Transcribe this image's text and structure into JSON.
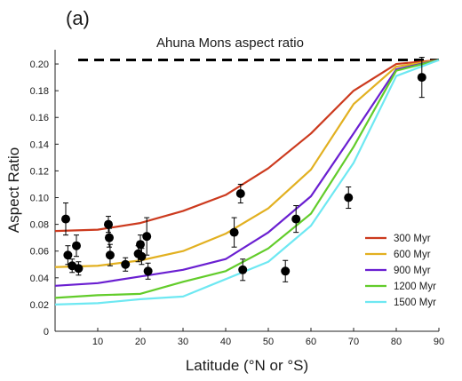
{
  "chart_data": {
    "type": "line",
    "panel_label": "(a)",
    "xlabel": "Latitude (°N or °S)",
    "ylabel": "Aspect Ratio",
    "xlim": [
      0,
      90
    ],
    "ylim": [
      0,
      0.21
    ],
    "xticks": [
      10,
      20,
      30,
      40,
      50,
      60,
      70,
      80,
      90
    ],
    "yticks": [
      0,
      0.02,
      0.04,
      0.06,
      0.08,
      0.1,
      0.12,
      0.14,
      0.16,
      0.18,
      0.2
    ],
    "ytick_labels": [
      "0",
      "0.02",
      "0.04",
      "0.06",
      "0.08",
      "0.10",
      "0.12",
      "0.14",
      "0.16",
      "0.18",
      "0.20"
    ],
    "grid": false,
    "reference_line": {
      "label": "Ahuna Mons aspect ratio",
      "y": 0.203,
      "style": "dashed",
      "color": "#000000"
    },
    "x": [
      0,
      10,
      20,
      30,
      40,
      50,
      60,
      70,
      80,
      90
    ],
    "series": [
      {
        "name": "300 Myr",
        "color": "#cc3a1e",
        "values": [
          0.075,
          0.076,
          0.081,
          0.09,
          0.102,
          0.122,
          0.148,
          0.18,
          0.2,
          0.203
        ]
      },
      {
        "name": "600 Myr",
        "color": "#e2b020",
        "values": [
          0.048,
          0.049,
          0.053,
          0.06,
          0.073,
          0.092,
          0.121,
          0.17,
          0.198,
          0.203
        ]
      },
      {
        "name": "900 Myr",
        "color": "#6a1fd1",
        "values": [
          0.034,
          0.036,
          0.041,
          0.046,
          0.054,
          0.074,
          0.101,
          0.148,
          0.196,
          0.203
        ]
      },
      {
        "name": "1200 Myr",
        "color": "#62cc2a",
        "values": [
          0.025,
          0.027,
          0.028,
          0.037,
          0.045,
          0.062,
          0.088,
          0.138,
          0.195,
          0.203
        ]
      },
      {
        "name": "1500 Myr",
        "color": "#6ee8f2",
        "values": [
          0.02,
          0.021,
          0.024,
          0.026,
          0.039,
          0.052,
          0.079,
          0.126,
          0.191,
          0.203
        ]
      }
    ],
    "observations": [
      {
        "x": 2.5,
        "y": 0.084,
        "err": 0.012
      },
      {
        "x": 3.0,
        "y": 0.057,
        "err": 0.007
      },
      {
        "x": 4.0,
        "y": 0.049,
        "err": 0.005
      },
      {
        "x": 5.0,
        "y": 0.064,
        "err": 0.008
      },
      {
        "x": 5.5,
        "y": 0.047,
        "err": 0.005
      },
      {
        "x": 12.5,
        "y": 0.08,
        "err": 0.006
      },
      {
        "x": 12.7,
        "y": 0.07,
        "err": 0.007
      },
      {
        "x": 12.9,
        "y": 0.057,
        "err": 0.008
      },
      {
        "x": 16.5,
        "y": 0.05,
        "err": 0.005
      },
      {
        "x": 19.5,
        "y": 0.058,
        "err": 0.006
      },
      {
        "x": 20.0,
        "y": 0.065,
        "err": 0.007
      },
      {
        "x": 20.3,
        "y": 0.056,
        "err": 0.006
      },
      {
        "x": 21.5,
        "y": 0.071,
        "err": 0.014
      },
      {
        "x": 21.8,
        "y": 0.045,
        "err": 0.006
      },
      {
        "x": 42.0,
        "y": 0.074,
        "err": 0.011
      },
      {
        "x": 43.5,
        "y": 0.103,
        "err": 0.007
      },
      {
        "x": 44.0,
        "y": 0.046,
        "err": 0.008
      },
      {
        "x": 54.0,
        "y": 0.045,
        "err": 0.008
      },
      {
        "x": 56.5,
        "y": 0.084,
        "err": 0.01
      },
      {
        "x": 68.8,
        "y": 0.1,
        "err": 0.008
      },
      {
        "x": 86.0,
        "y": 0.19,
        "err": 0.015
      }
    ],
    "legend": {
      "placement": "bottom-right"
    }
  }
}
